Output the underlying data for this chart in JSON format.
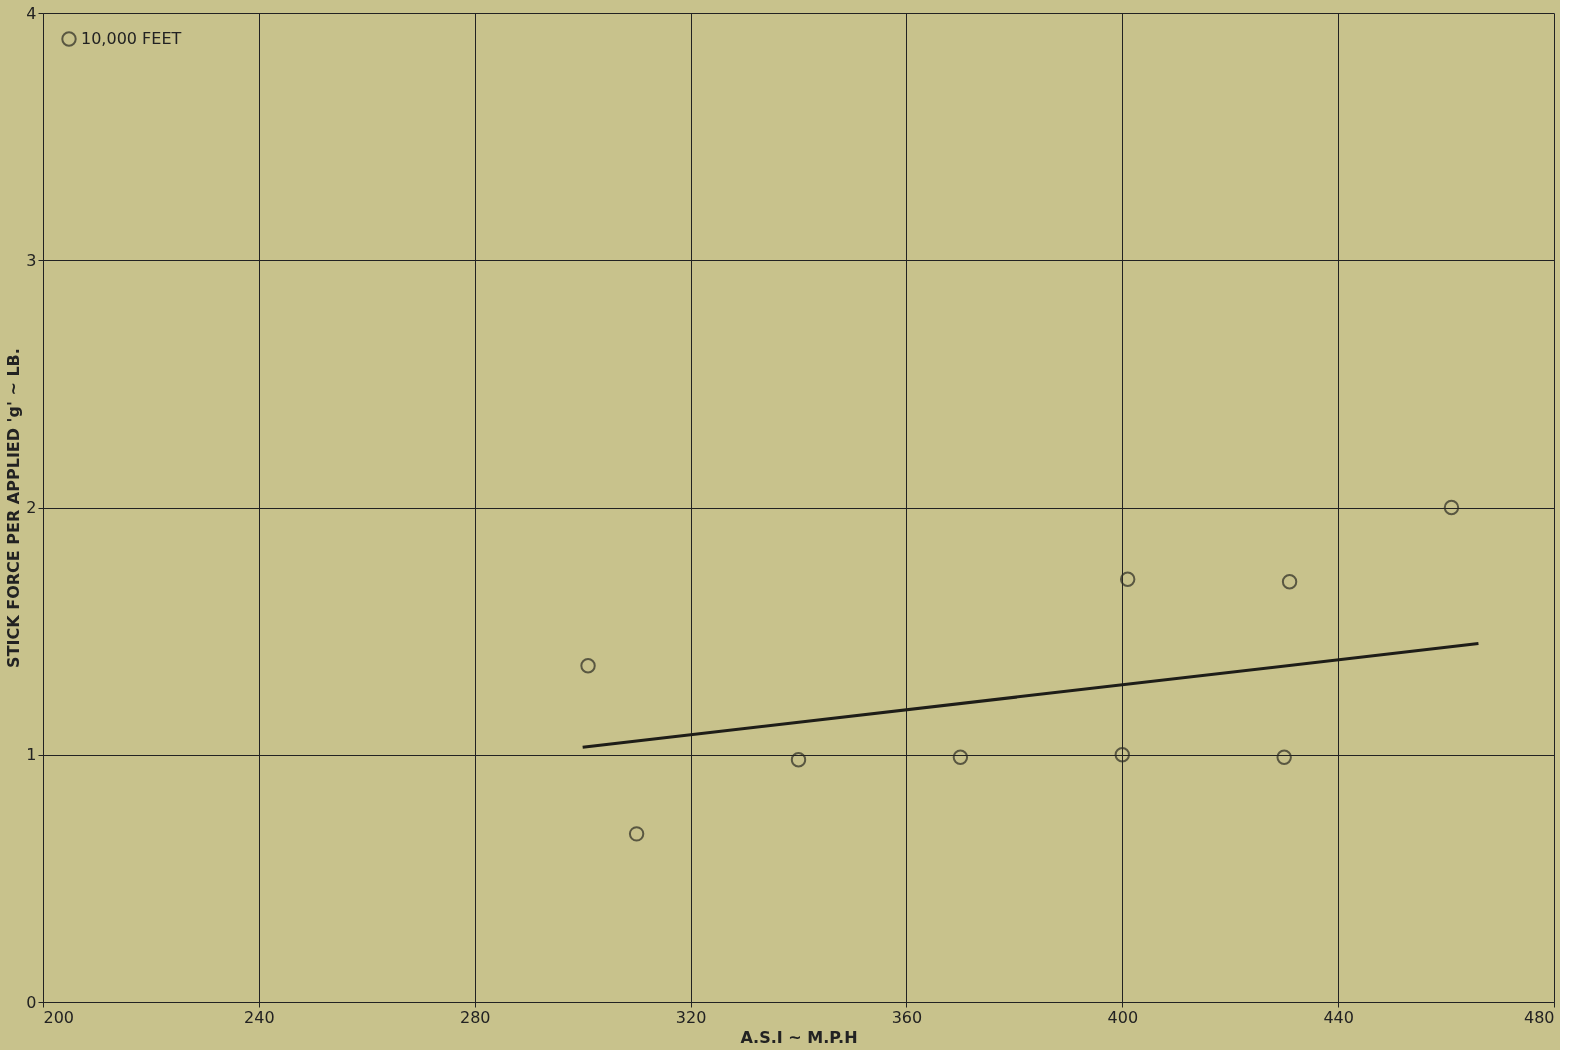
{
  "chart_data": {
    "type": "scatter",
    "xlabel": "A.S.I ~ M.P.H",
    "ylabel": "STICK FORCE PER APPLIED 'g' ~ LB.",
    "xlim": [
      200,
      480
    ],
    "ylim": [
      0,
      4
    ],
    "xticks": [
      200,
      240,
      280,
      320,
      360,
      400,
      440,
      480
    ],
    "yticks": [
      0,
      1,
      2,
      3,
      4
    ],
    "grid": true,
    "legend": "top left",
    "series": [
      {
        "name": "10,000 FEET",
        "color": "#2b2a22",
        "marker": "circle",
        "x": [
          301,
          310,
          340,
          370,
          400,
          401,
          430,
          431,
          461
        ],
        "values": [
          1.36,
          0.68,
          0.98,
          0.99,
          1.0,
          1.71,
          0.99,
          1.7,
          2.0
        ]
      },
      {
        "type": "line",
        "color": "#1e1d18",
        "marker": "none",
        "line_style": "solid",
        "x": [
          300,
          466
        ],
        "values": [
          1.03,
          1.45
        ]
      }
    ]
  }
}
